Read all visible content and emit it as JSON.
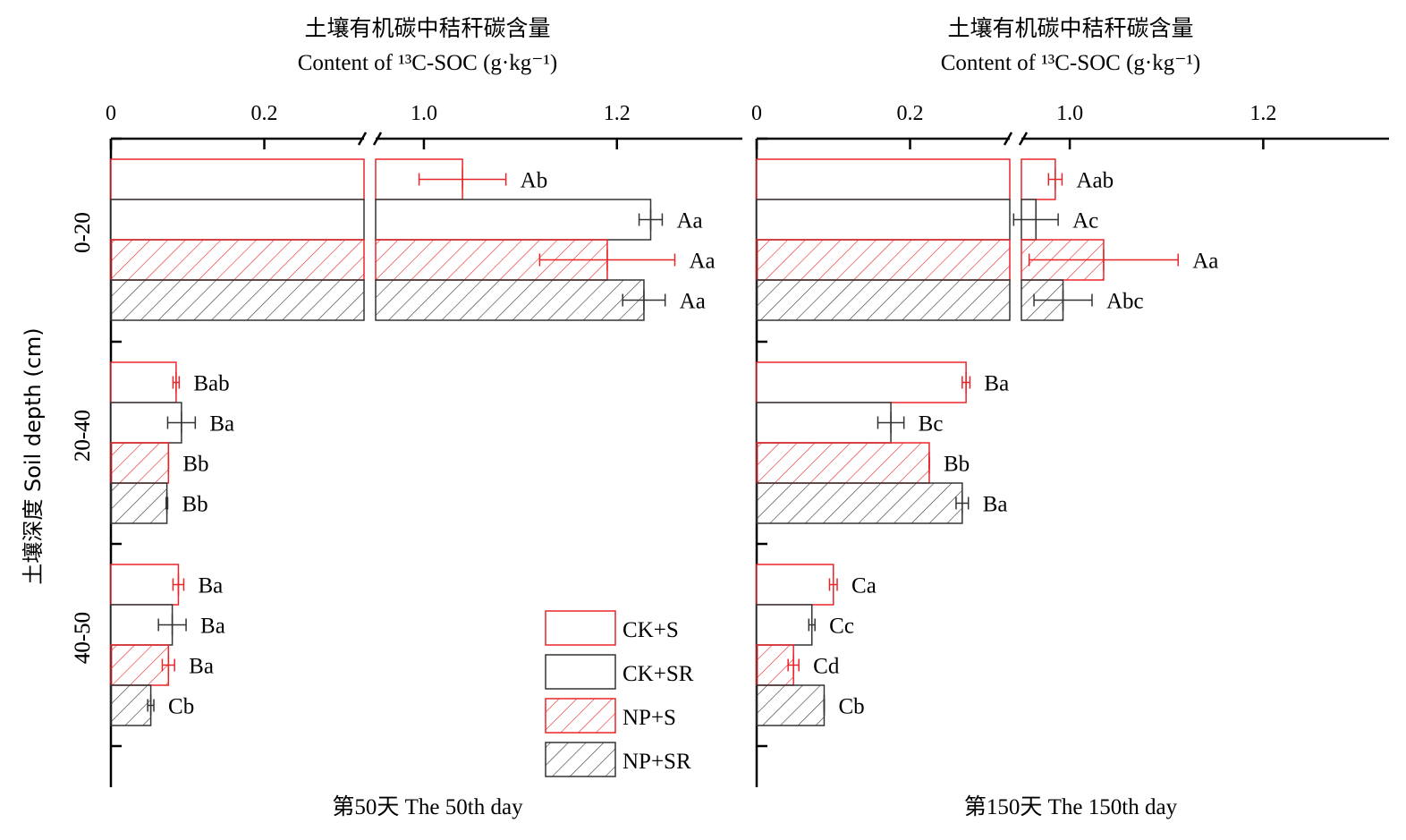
{
  "y_axis_label": "土壤深度 Soil depth (cm)",
  "legend": [
    {
      "label": "CK+S",
      "edge": "#e8262a",
      "hatch": false
    },
    {
      "label": "CK+SR",
      "edge": "#333333",
      "hatch": false
    },
    {
      "label": "NP+S",
      "edge": "#e8262a",
      "hatch": true
    },
    {
      "label": "NP+SR",
      "edge": "#333333",
      "hatch": true
    }
  ],
  "chart_data": [
    {
      "type": "bar",
      "orientation": "horizontal",
      "title_cn": "土壤有机碳中秸秆碳含量",
      "title_en": "Content of ¹³C-SOC (g·kg⁻¹)",
      "footer": "第50天 The 50th  day",
      "x_axis": {
        "broken": true,
        "segments": [
          [
            0,
            0.33
          ],
          [
            0.95,
            1.33
          ]
        ],
        "ticks": [
          "0",
          "0.2",
          "1.0",
          "1.2"
        ]
      },
      "categories": [
        "0-20",
        "20-40",
        "40-50"
      ],
      "series": [
        {
          "name": "CK+S",
          "values": [
            1.04,
            0.085,
            0.088
          ],
          "errors": [
            0.045,
            0.004,
            0.007
          ],
          "labels": [
            "Ab",
            "Bab",
            "Ba"
          ]
        },
        {
          "name": "CK+SR",
          "values": [
            1.235,
            0.092,
            0.08
          ],
          "errors": [
            0.012,
            0.018,
            0.018
          ],
          "labels": [
            "Aa",
            "Ba",
            "Ba"
          ]
        },
        {
          "name": "NP+S",
          "values": [
            1.19,
            0.075,
            0.075
          ],
          "errors": [
            0.07,
            0.0,
            0.008
          ],
          "labels": [
            "Aa",
            "Bb",
            "Ba"
          ]
        },
        {
          "name": "NP+SR",
          "values": [
            1.228,
            0.073,
            0.052
          ],
          "errors": [
            0.022,
            0.001,
            0.004
          ],
          "labels": [
            "Aa",
            "Bb",
            "Cb"
          ]
        }
      ]
    },
    {
      "type": "bar",
      "orientation": "horizontal",
      "title_cn": "土壤有机碳中秸秆碳含量",
      "title_en": "Content of ¹³C-SOC (g·kg⁻¹)",
      "footer": "第150天 The 150th  day",
      "x_axis": {
        "broken": true,
        "segments": [
          [
            0,
            0.33
          ],
          [
            0.95,
            1.33
          ]
        ],
        "ticks": [
          "0",
          "0.2",
          "1.0",
          "1.2"
        ]
      },
      "categories": [
        "0-20",
        "20-40",
        "40-50"
      ],
      "series": [
        {
          "name": "CK+S",
          "values": [
            0.985,
            0.273,
            0.1
          ],
          "errors": [
            0.007,
            0.005,
            0.005
          ],
          "labels": [
            "Aab",
            "Ba",
            "Ca"
          ]
        },
        {
          "name": "CK+SR",
          "values": [
            0.965,
            0.175,
            0.072
          ],
          "errors": [
            0.023,
            0.017,
            0.004
          ],
          "labels": [
            "Ac",
            "Bc",
            "Cc"
          ]
        },
        {
          "name": "NP+S",
          "values": [
            1.035,
            0.225,
            0.048
          ],
          "errors": [
            0.077,
            0.0,
            0.007
          ],
          "labels": [
            "Aa",
            "Bb",
            "Cd"
          ]
        },
        {
          "name": "NP+SR",
          "values": [
            0.993,
            0.268,
            0.088
          ],
          "errors": [
            0.03,
            0.008,
            0.0
          ],
          "labels": [
            "Abc",
            "Ba",
            "Cb"
          ]
        }
      ]
    }
  ]
}
